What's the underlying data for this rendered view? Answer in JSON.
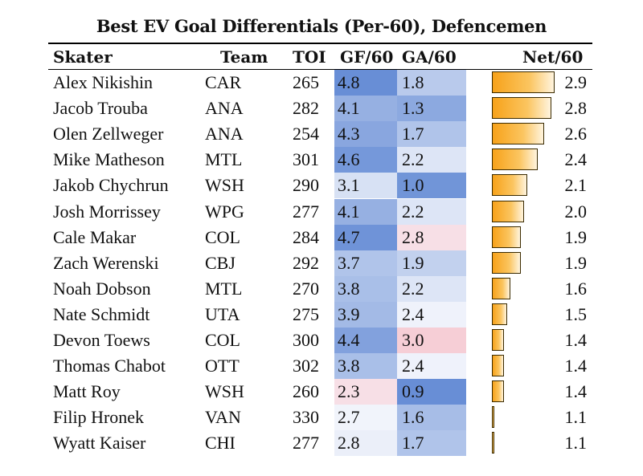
{
  "chart_data": {
    "type": "table",
    "title": "Best EV Goal Differentials (Per-60), Defencemen",
    "columns": [
      "Skater",
      "Team",
      "TOI",
      "GF/60",
      "GA/60",
      "Net/60"
    ],
    "rows": [
      {
        "skater": "Alex Nikishin",
        "team": "CAR",
        "toi": "265",
        "gf": "4.8",
        "ga": "1.8",
        "net": "2.9"
      },
      {
        "skater": "Jacob Trouba",
        "team": "ANA",
        "toi": "282",
        "gf": "4.1",
        "ga": "1.3",
        "net": "2.8"
      },
      {
        "skater": "Olen Zellweger",
        "team": "ANA",
        "toi": "254",
        "gf": "4.3",
        "ga": "1.7",
        "net": "2.6"
      },
      {
        "skater": "Mike Matheson",
        "team": "MTL",
        "toi": "301",
        "gf": "4.6",
        "ga": "2.2",
        "net": "2.4"
      },
      {
        "skater": "Jakob Chychrun",
        "team": "WSH",
        "toi": "290",
        "gf": "3.1",
        "ga": "1.0",
        "net": "2.1"
      },
      {
        "skater": "Josh Morrissey",
        "team": "WPG",
        "toi": "277",
        "gf": "4.1",
        "ga": "2.2",
        "net": "2.0"
      },
      {
        "skater": "Cale Makar",
        "team": "COL",
        "toi": "284",
        "gf": "4.7",
        "ga": "2.8",
        "net": "1.9"
      },
      {
        "skater": "Zach Werenski",
        "team": "CBJ",
        "toi": "292",
        "gf": "3.7",
        "ga": "1.9",
        "net": "1.9"
      },
      {
        "skater": "Noah Dobson",
        "team": "MTL",
        "toi": "270",
        "gf": "3.8",
        "ga": "2.2",
        "net": "1.6"
      },
      {
        "skater": "Nate Schmidt",
        "team": "UTA",
        "toi": "275",
        "gf": "3.9",
        "ga": "2.4",
        "net": "1.5"
      },
      {
        "skater": "Devon Toews",
        "team": "COL",
        "toi": "300",
        "gf": "4.4",
        "ga": "3.0",
        "net": "1.4"
      },
      {
        "skater": "Thomas Chabot",
        "team": "OTT",
        "toi": "302",
        "gf": "3.8",
        "ga": "2.4",
        "net": "1.4"
      },
      {
        "skater": "Matt Roy",
        "team": "WSH",
        "toi": "260",
        "gf": "2.3",
        "ga": "0.9",
        "net": "1.4"
      },
      {
        "skater": "Filip Hronek",
        "team": "VAN",
        "toi": "330",
        "gf": "2.7",
        "ga": "1.6",
        "net": "1.1"
      },
      {
        "skater": "Wyatt Kaiser",
        "team": "CHI",
        "toi": "277",
        "gf": "2.8",
        "ga": "1.7",
        "net": "1.1"
      }
    ],
    "net_bar_range": [
      1.05,
      2.9
    ]
  }
}
